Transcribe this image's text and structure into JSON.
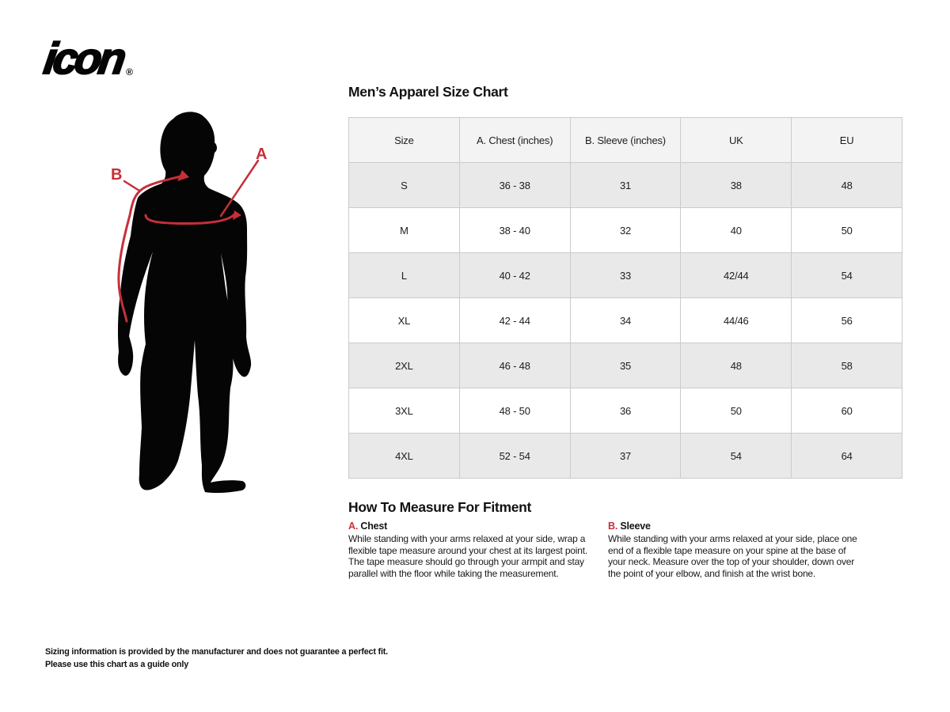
{
  "logo": {
    "text": "icon",
    "registered": "®"
  },
  "size_chart": {
    "title": "Men’s Apparel Size Chart",
    "columns": [
      "Size",
      "A. Chest (inches)",
      "B. Sleeve (inches)",
      "UK",
      "EU"
    ],
    "rows": [
      [
        "S",
        "36 - 38",
        "31",
        "38",
        "48"
      ],
      [
        "M",
        "38 - 40",
        "32",
        "40",
        "50"
      ],
      [
        "L",
        "40 - 42",
        "33",
        "42/44",
        "54"
      ],
      [
        "XL",
        "42 - 44",
        "34",
        "44/46",
        "56"
      ],
      [
        "2XL",
        "46 - 48",
        "35",
        "48",
        "58"
      ],
      [
        "3XL",
        "48 - 50",
        "36",
        "50",
        "60"
      ],
      [
        "4XL",
        "52 - 54",
        "37",
        "54",
        "64"
      ]
    ]
  },
  "figure": {
    "label_a": "A",
    "label_b": "B"
  },
  "measure": {
    "heading": "How To Measure For Fitment",
    "sections": [
      {
        "letter": "A.",
        "name": "Chest",
        "text": "While standing with your arms relaxed at your side, wrap a\nflexible tape measure around your chest at its largest point.\nThe tape measure should go through your armpit and stay\nparallel with the floor while taking the measurement."
      },
      {
        "letter": "B.",
        "name": "Sleeve",
        "text": "While standing with your arms relaxed at your side, place one\nend of a flexible tape measure on your spine at the base of\nyour neck. Measure over the top of your shoulder, down over\nthe point of your elbow, and finish at the wrist bone."
      }
    ]
  },
  "disclaimer": "Sizing information is provided by the manufacturer and does not guarantee a perfect fit.\nPlease use this chart as a guide only",
  "colors": {
    "accent_red": "#c62f3a",
    "silhouette_black": "#050505",
    "table_header_bg": "#f3f3f3",
    "table_row_alt_bg": "#e9e9e9",
    "table_border": "#cbcbcb"
  }
}
